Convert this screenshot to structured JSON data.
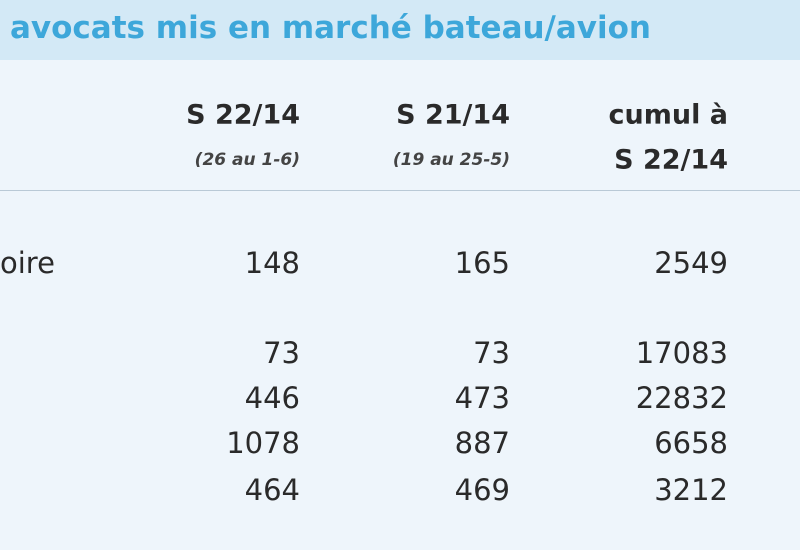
{
  "title": "avocats mis en marché bateau/avion",
  "table": {
    "header": [
      {
        "line1": "S 22/14",
        "line2": "(26 au 1-6)"
      },
      {
        "line1": "S 21/14",
        "line2": "(19 au 25-5)"
      },
      {
        "line1": "cumul à",
        "line2": "S 22/14"
      }
    ],
    "rows": [
      {
        "label": "oire",
        "cells": [
          148,
          165,
          2549
        ]
      },
      {
        "cells": [
          73,
          73,
          17083
        ]
      },
      {
        "cells": [
          446,
          473,
          22832
        ]
      },
      {
        "cells": [
          1078,
          887,
          6658
        ]
      },
      {
        "cells": [
          464,
          469,
          3212
        ]
      }
    ]
  }
}
